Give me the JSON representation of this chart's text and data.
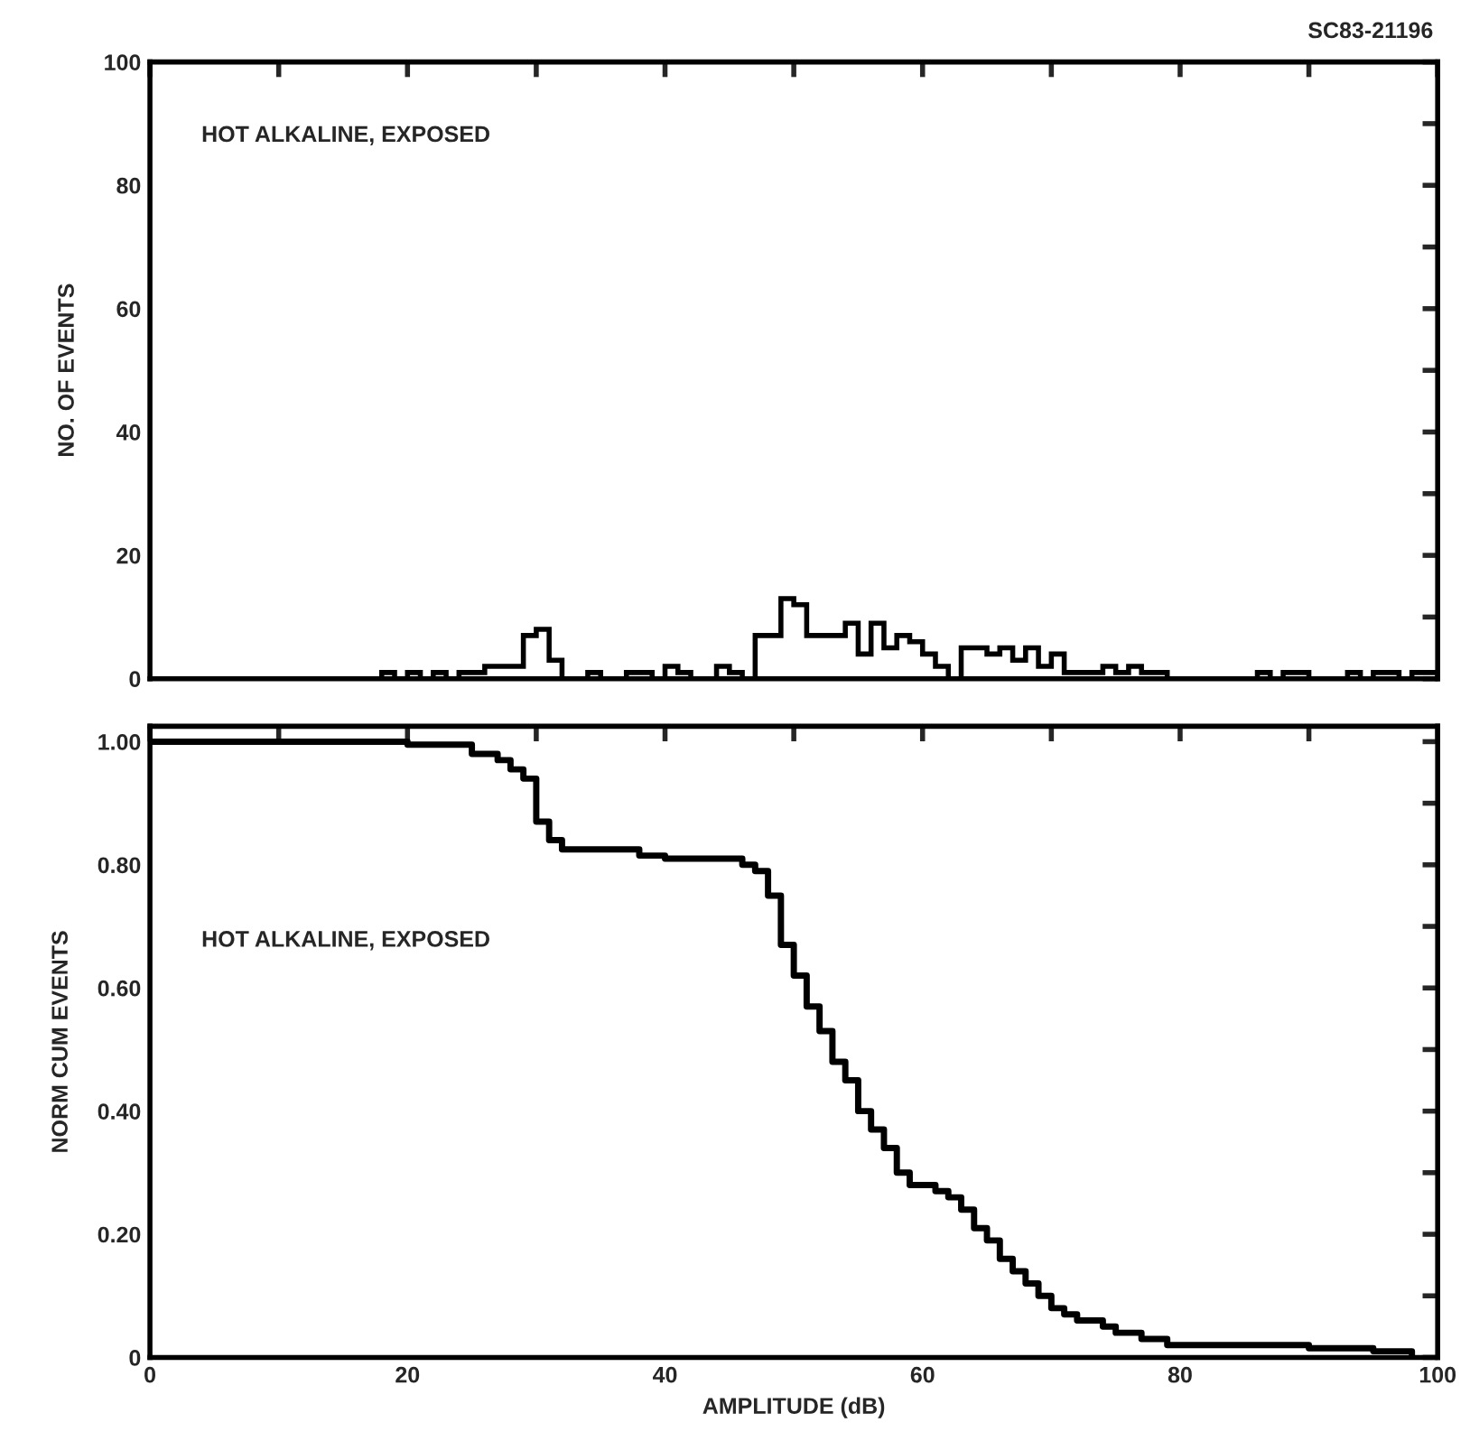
{
  "chart_data": [
    {
      "type": "histogram",
      "ylabel": "NO. OF EVENTS",
      "annotations": [
        "SC83-21196",
        "HOT ALKALINE, EXPOSED"
      ],
      "color": "#000000",
      "bins": [
        0,
        1,
        2,
        3,
        4,
        5,
        6,
        7,
        8,
        9,
        10,
        11,
        12,
        13,
        14,
        15,
        16,
        17,
        18,
        19,
        20,
        21,
        22,
        23,
        24,
        25,
        26,
        27,
        28,
        29,
        30,
        31,
        32,
        33,
        34,
        35,
        36,
        37,
        38,
        39,
        40,
        41,
        42,
        43,
        44,
        45,
        46,
        47,
        48,
        49,
        50,
        51,
        52,
        53,
        54,
        55,
        56,
        57,
        58,
        59,
        60,
        61,
        62,
        63,
        64,
        65,
        66,
        67,
        68,
        69,
        70,
        71,
        72,
        73,
        74,
        75,
        76,
        77,
        78,
        79,
        80,
        81,
        82,
        83,
        84,
        85,
        86,
        87,
        88,
        89,
        90,
        91,
        92,
        93,
        94,
        95,
        96,
        97,
        98,
        99,
        100
      ],
      "values": [
        0,
        0,
        0,
        0,
        0,
        0,
        0,
        0,
        0,
        0,
        0,
        0,
        0,
        0,
        0,
        0,
        0,
        0,
        1,
        0,
        1,
        0,
        1,
        0,
        1,
        1,
        2,
        2,
        2,
        7,
        8,
        3,
        0,
        0,
        1,
        0,
        0,
        1,
        1,
        0,
        2,
        1,
        0,
        0,
        2,
        1,
        0,
        7,
        7,
        13,
        12,
        7,
        7,
        7,
        9,
        4,
        9,
        5,
        7,
        6,
        4,
        2,
        0,
        5,
        5,
        4,
        5,
        3,
        5,
        2,
        4,
        1,
        1,
        1,
        2,
        1,
        2,
        1,
        1,
        0,
        0,
        0,
        0,
        0,
        0,
        0,
        1,
        0,
        1,
        1,
        0,
        0,
        0,
        1,
        0,
        1,
        1,
        0,
        1,
        1
      ],
      "xlim": [
        0,
        100
      ],
      "xticks": [
        0,
        10,
        20,
        30,
        40,
        50,
        60,
        70,
        80,
        90,
        100
      ],
      "ylim": [
        0,
        100
      ],
      "yticks": [
        0,
        {
          "value": 10,
          "label": null
        },
        20,
        {
          "value": 30,
          "label": null
        },
        40,
        {
          "value": 50,
          "label": null
        },
        60,
        {
          "value": 70,
          "label": null
        },
        80,
        {
          "value": 90,
          "label": null
        },
        100
      ],
      "tick_labels": "y"
    },
    {
      "type": "step",
      "xlabel": "AMPLITUDE (dB)",
      "ylabel": "NORM CUM EVENTS",
      "annotations": [
        "HOT ALKALINE, EXPOSED"
      ],
      "series": [
        {
          "color": "#000000",
          "x": [
            0,
            18,
            20,
            25,
            27,
            28,
            29,
            30,
            31,
            32,
            35,
            38,
            40,
            44,
            46,
            47,
            48,
            49,
            50,
            51,
            52,
            53,
            54,
            55,
            56,
            57,
            58,
            59,
            60,
            61,
            62,
            63,
            64,
            65,
            66,
            67,
            68,
            69,
            70,
            71,
            72,
            74,
            75,
            77,
            79,
            85,
            90,
            95,
            98
          ],
          "values": [
            1.0,
            1.0,
            0.995,
            0.98,
            0.97,
            0.955,
            0.94,
            0.87,
            0.84,
            0.825,
            0.825,
            0.815,
            0.81,
            0.81,
            0.8,
            0.79,
            0.75,
            0.67,
            0.62,
            0.57,
            0.53,
            0.48,
            0.45,
            0.4,
            0.37,
            0.34,
            0.3,
            0.28,
            0.28,
            0.27,
            0.26,
            0.24,
            0.21,
            0.19,
            0.16,
            0.14,
            0.12,
            0.1,
            0.08,
            0.07,
            0.06,
            0.05,
            0.04,
            0.03,
            0.02,
            0.02,
            0.015,
            0.01,
            0.003
          ]
        }
      ],
      "xlim": [
        0,
        100
      ],
      "xticks": [
        0,
        {
          "value": 10,
          "label": null
        },
        20,
        {
          "value": 30,
          "label": null
        },
        40,
        {
          "value": 50,
          "label": null
        },
        60,
        {
          "value": 70,
          "label": null
        },
        80,
        {
          "value": 90,
          "label": null
        },
        100
      ],
      "ylim": [
        0,
        1.025
      ],
      "yticks": [
        {
          "value": 0,
          "label": "0"
        },
        {
          "value": 0.1,
          "label": null
        },
        {
          "value": 0.2,
          "label": "0.20"
        },
        {
          "value": 0.3,
          "label": null
        },
        {
          "value": 0.4,
          "label": "0.40"
        },
        {
          "value": 0.5,
          "label": null
        },
        {
          "value": 0.6,
          "label": "0.60"
        },
        {
          "value": 0.7,
          "label": null
        },
        {
          "value": 0.8,
          "label": "0.80"
        },
        {
          "value": 0.9,
          "label": null
        },
        {
          "value": 1.0,
          "label": "1.00"
        }
      ],
      "line_style": "solid"
    }
  ]
}
